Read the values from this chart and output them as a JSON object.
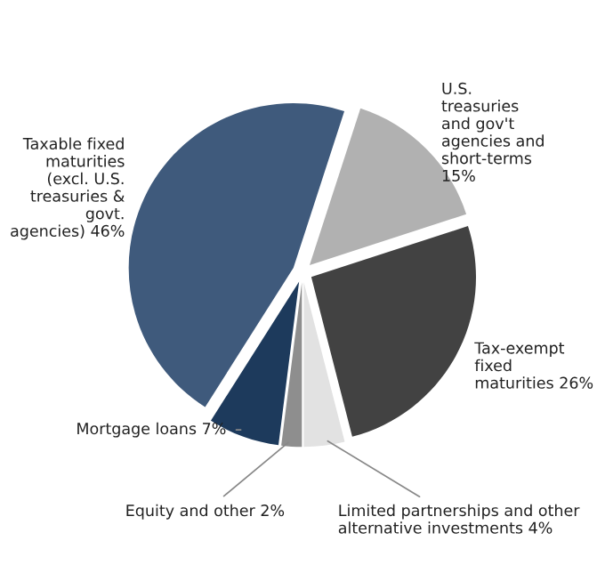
{
  "chart_data": {
    "type": "pie",
    "categories": [
      "U.S.\ntreasuries\nand gov't\nagencies and\nshort-terms\n15%",
      "Tax-exempt\nfixed\nmaturities 26%",
      "Limited partnerships and other\nalternative investments 4%",
      "Equity and other 2%",
      "Mortgage loans 7%",
      "Taxable fixed\nmaturities\n(excl. U.S.\ntreasuries &\ngovt.\nagencies) 46%"
    ],
    "values": [
      15,
      26,
      4,
      2,
      7,
      46
    ],
    "colors": [
      "#b1b1b1",
      "#424242",
      "#e2e2e2",
      "#8e8e8e",
      "#1d3a5c",
      "#3f5a7c"
    ],
    "legend": false
  }
}
